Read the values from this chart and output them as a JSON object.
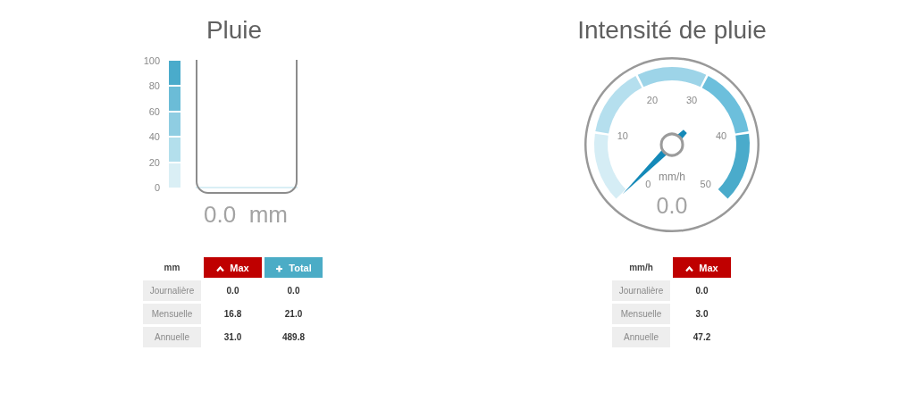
{
  "chart_data": [
    {
      "type": "bar",
      "title": "Pluie",
      "categories": [
        null
      ],
      "values": [
        0
      ],
      "value_labels": [
        "0.0  mm"
      ],
      "ylim": [
        0,
        100
      ],
      "yticks": [
        0,
        20,
        40,
        60,
        80,
        100
      ]
    },
    {
      "type": "other",
      "title": "Intensité de pluie",
      "values": [
        0
      ],
      "value_labels": [
        "0.0"
      ],
      "ylabel": "mm/h",
      "annotations": [
        "0",
        "10",
        "20",
        "30",
        "40",
        "50"
      ],
      "color": "#1489b8"
    },
    {
      "type": "other",
      "ylabel": "mm",
      "categories": [
        "Journalière",
        "Mensuelle",
        "Annuelle"
      ],
      "series": [
        {
          "name": "Max",
          "values": [
            0,
            16.8,
            31
          ],
          "value_labels": [
            "0.0",
            "16.8",
            "31.0"
          ]
        },
        {
          "name": "Total",
          "values": [
            0,
            21,
            489.8
          ],
          "value_labels": [
            "0.0",
            "21.0",
            "489.8"
          ]
        }
      ]
    },
    {
      "type": "other",
      "ylabel": "mm/h",
      "categories": [
        "Journalière",
        "Mensuelle",
        "Annuelle"
      ],
      "series": [
        {
          "name": "Max",
          "values": [
            0,
            3,
            47.2
          ],
          "value_labels": [
            "0.0",
            "3.0",
            "47.2"
          ]
        }
      ]
    }
  ]
}
